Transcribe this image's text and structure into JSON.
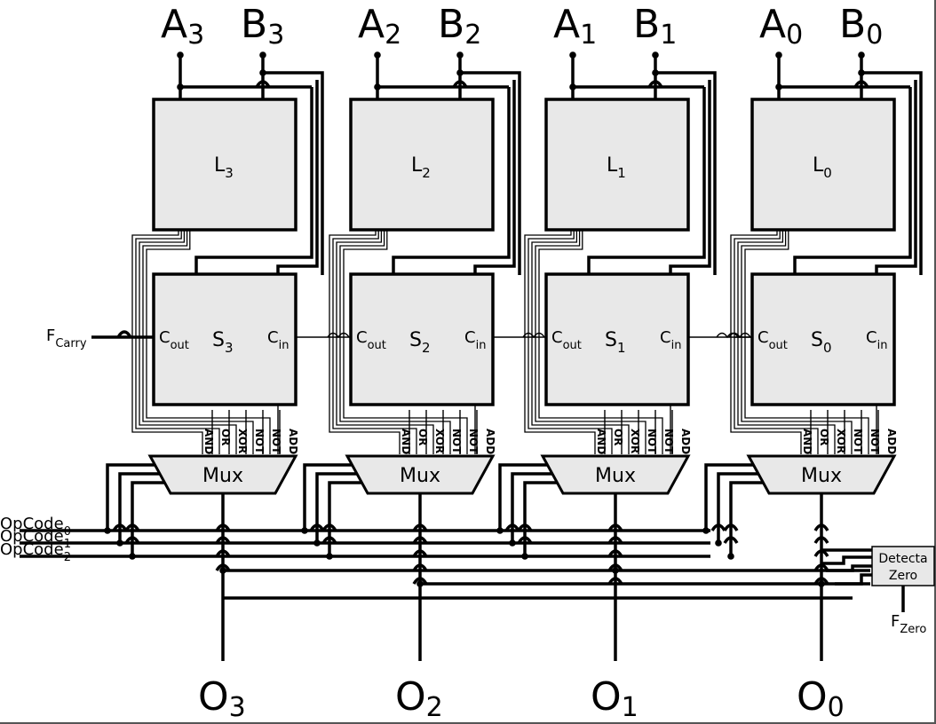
{
  "slices": [
    {
      "index": "3",
      "a_label": "A",
      "b_label": "B",
      "logic_label": "L",
      "sum_label": "S",
      "out_label": "O",
      "mux_label": "Mux"
    },
    {
      "index": "2",
      "a_label": "A",
      "b_label": "B",
      "logic_label": "L",
      "sum_label": "S",
      "out_label": "O",
      "mux_label": "Mux"
    },
    {
      "index": "1",
      "a_label": "A",
      "b_label": "B",
      "logic_label": "L",
      "sum_label": "S",
      "out_label": "O",
      "mux_label": "Mux"
    },
    {
      "index": "0",
      "a_label": "A",
      "b_label": "B",
      "logic_label": "L",
      "sum_label": "S",
      "out_label": "O",
      "mux_label": "Mux"
    }
  ],
  "carry_pins": {
    "out_base": "C",
    "out_sub": "out",
    "in_base": "C",
    "in_sub": "in"
  },
  "mux_inputs": [
    "AND",
    "OR",
    "XOR",
    "NOT B",
    "NOT A",
    "ADD"
  ],
  "flag_carry": {
    "base": "F",
    "sub": "Carry"
  },
  "flag_zero": {
    "base": "F",
    "sub": "Zero"
  },
  "opcodes": [
    {
      "base": "OpCode",
      "sub": "0"
    },
    {
      "base": "OpCode",
      "sub": "1"
    },
    {
      "base": "OpCode",
      "sub": "2"
    }
  ],
  "zero_detector": {
    "line1": "Detecta",
    "line2": "Zero"
  }
}
